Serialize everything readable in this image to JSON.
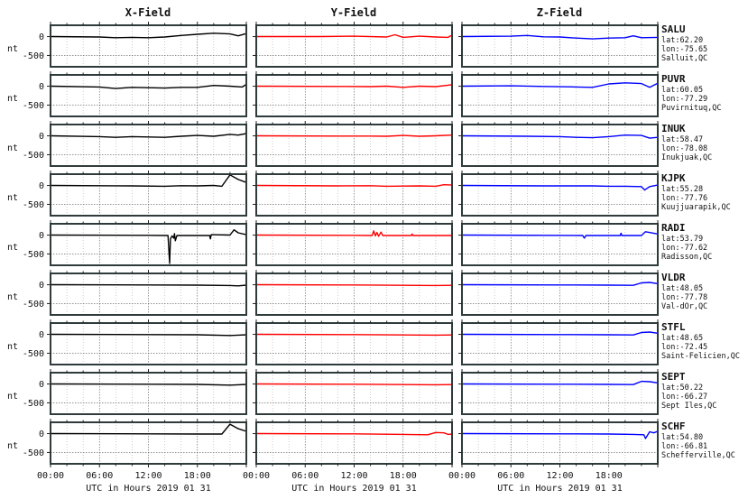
{
  "columns": [
    "X-Field",
    "Y-Field",
    "Z-Field"
  ],
  "colors": {
    "x": "#000000",
    "y": "#ff0000",
    "z": "#0000ff"
  },
  "unit": "nt",
  "y_ticks": [
    "0",
    "-500"
  ],
  "x_ticks": [
    "00:00",
    "06:00",
    "12:00",
    "18:00"
  ],
  "x_axis_label": "UTC in Hours  2019 01 31",
  "stations": [
    {
      "code": "SALU",
      "lat": "lat:62.20",
      "lon": "lon:-75.65",
      "place": "Salluit,QC"
    },
    {
      "code": "PUVR",
      "lat": "lat:60.05",
      "lon": "lon:-77.29",
      "place": "Puvirnituq,QC"
    },
    {
      "code": "INUK",
      "lat": "lat:58.47",
      "lon": "lon:-78.08",
      "place": "Inukjuak,QC"
    },
    {
      "code": "KJPK",
      "lat": "lat:55.28",
      "lon": "lon:-77.76",
      "place": "Kuujjuarapik,QC"
    },
    {
      "code": "RADI",
      "lat": "lat:53.79",
      "lon": "lon:-77.62",
      "place": "Radisson,QC"
    },
    {
      "code": "VLDR",
      "lat": "lat:48.05",
      "lon": "lon:-77.78",
      "place": "Val-dOr,QC"
    },
    {
      "code": "STFL",
      "lat": "lat:48.65",
      "lon": "lon:-72.45",
      "place": "Saint-Felicien,QC"
    },
    {
      "code": "SEPT",
      "lat": "lat:50.22",
      "lon": "lon:-66.27",
      "place": "Sept Iles,QC"
    },
    {
      "code": "SCHF",
      "lat": "lat:54.80",
      "lon": "lon:-66.81",
      "place": "Schefferville,QC"
    }
  ],
  "chart_data": {
    "type": "line",
    "title": "",
    "xlabel": "UTC in Hours  2019 01 31",
    "ylabel": "nt",
    "xlim": [
      0,
      24
    ],
    "ylim": [
      -800,
      300
    ],
    "x_tick_values": [
      0,
      6,
      12,
      18
    ],
    "y_tick_values": [
      0,
      -500
    ],
    "grid": true,
    "panels": [
      {
        "station": "SALU",
        "x": [
          [
            0,
            0
          ],
          [
            6,
            -10
          ],
          [
            8,
            -30
          ],
          [
            10,
            -20
          ],
          [
            12,
            -30
          ],
          [
            14,
            -10
          ],
          [
            16,
            30
          ],
          [
            18,
            60
          ],
          [
            20,
            90
          ],
          [
            22,
            70
          ],
          [
            23,
            20
          ],
          [
            24,
            80
          ]
        ],
        "y": [
          [
            0,
            0
          ],
          [
            8,
            0
          ],
          [
            12,
            10
          ],
          [
            16,
            -10
          ],
          [
            17,
            50
          ],
          [
            18,
            -20
          ],
          [
            20,
            10
          ],
          [
            22,
            -10
          ],
          [
            23.5,
            -20
          ],
          [
            24,
            40
          ]
        ],
        "z": [
          [
            0,
            0
          ],
          [
            6,
            10
          ],
          [
            8,
            30
          ],
          [
            10,
            -5
          ],
          [
            12,
            -10
          ],
          [
            14,
            -40
          ],
          [
            16,
            -60
          ],
          [
            18,
            -40
          ],
          [
            20,
            -30
          ],
          [
            21,
            20
          ],
          [
            22,
            -30
          ],
          [
            24,
            -20
          ]
        ]
      },
      {
        "station": "PUVR",
        "x": [
          [
            0,
            0
          ],
          [
            6,
            -20
          ],
          [
            8,
            -60
          ],
          [
            10,
            -30
          ],
          [
            12,
            -40
          ],
          [
            14,
            -50
          ],
          [
            16,
            -30
          ],
          [
            18,
            -30
          ],
          [
            20,
            20
          ],
          [
            22,
            0
          ],
          [
            23.5,
            -20
          ],
          [
            24,
            50
          ]
        ],
        "y": [
          [
            0,
            0
          ],
          [
            10,
            -5
          ],
          [
            14,
            -10
          ],
          [
            16,
            0
          ],
          [
            18,
            -30
          ],
          [
            20,
            0
          ],
          [
            22,
            -10
          ],
          [
            24,
            40
          ]
        ],
        "z": [
          [
            0,
            0
          ],
          [
            6,
            10
          ],
          [
            10,
            -5
          ],
          [
            14,
            -20
          ],
          [
            16,
            -30
          ],
          [
            18,
            60
          ],
          [
            20,
            90
          ],
          [
            22,
            70
          ],
          [
            23,
            -30
          ],
          [
            24,
            80
          ]
        ]
      },
      {
        "station": "INUK",
        "x": [
          [
            0,
            0
          ],
          [
            6,
            -20
          ],
          [
            8,
            -40
          ],
          [
            10,
            -20
          ],
          [
            12,
            -30
          ],
          [
            14,
            -40
          ],
          [
            16,
            -10
          ],
          [
            18,
            10
          ],
          [
            20,
            -10
          ],
          [
            22,
            40
          ],
          [
            23,
            20
          ],
          [
            24,
            60
          ]
        ],
        "y": [
          [
            0,
            0
          ],
          [
            10,
            -5
          ],
          [
            14,
            -5
          ],
          [
            16,
            -10
          ],
          [
            18,
            10
          ],
          [
            20,
            -10
          ],
          [
            22,
            0
          ],
          [
            24,
            20
          ]
        ],
        "z": [
          [
            0,
            0
          ],
          [
            8,
            -10
          ],
          [
            12,
            -20
          ],
          [
            14,
            -40
          ],
          [
            16,
            -50
          ],
          [
            18,
            -20
          ],
          [
            20,
            20
          ],
          [
            22,
            10
          ],
          [
            23,
            -60
          ],
          [
            24,
            -40
          ]
        ]
      },
      {
        "station": "KJPK",
        "x": [
          [
            0,
            0
          ],
          [
            10,
            -10
          ],
          [
            14,
            -20
          ],
          [
            16,
            -5
          ],
          [
            18,
            -10
          ],
          [
            20,
            0
          ],
          [
            21,
            -20
          ],
          [
            22,
            280
          ],
          [
            23,
            160
          ],
          [
            24,
            80
          ]
        ],
        "y": [
          [
            0,
            0
          ],
          [
            10,
            -10
          ],
          [
            14,
            -5
          ],
          [
            16,
            -20
          ],
          [
            18,
            -15
          ],
          [
            20,
            -10
          ],
          [
            22,
            -20
          ],
          [
            23,
            20
          ],
          [
            24,
            10
          ]
        ],
        "z": [
          [
            0,
            0
          ],
          [
            10,
            -10
          ],
          [
            14,
            -10
          ],
          [
            16,
            -10
          ],
          [
            18,
            -20
          ],
          [
            20,
            -20
          ],
          [
            22,
            -30
          ],
          [
            22.4,
            -120
          ],
          [
            23,
            -30
          ],
          [
            24,
            10
          ]
        ]
      },
      {
        "station": "RADI",
        "x": [
          [
            0,
            0
          ],
          [
            12,
            -5
          ],
          [
            14.4,
            -10
          ],
          [
            14.5,
            -380
          ],
          [
            14.6,
            -750
          ],
          [
            14.7,
            -100
          ],
          [
            14.9,
            -20
          ],
          [
            15.1,
            -80
          ],
          [
            15.2,
            40
          ],
          [
            15.3,
            -150
          ],
          [
            15.5,
            -10
          ],
          [
            19.5,
            -10
          ],
          [
            19.6,
            -100
          ],
          [
            19.7,
            10
          ],
          [
            22,
            0
          ],
          [
            22.5,
            140
          ],
          [
            23,
            60
          ],
          [
            24,
            10
          ]
        ],
        "y": [
          [
            0,
            0
          ],
          [
            12,
            -5
          ],
          [
            14.2,
            -10
          ],
          [
            14.4,
            110
          ],
          [
            14.6,
            -20
          ],
          [
            14.8,
            70
          ],
          [
            15,
            -30
          ],
          [
            15.3,
            80
          ],
          [
            15.5,
            -10
          ],
          [
            19,
            -10
          ],
          [
            19.1,
            30
          ],
          [
            19.2,
            -10
          ],
          [
            24,
            -10
          ]
        ],
        "z": [
          [
            0,
            0
          ],
          [
            14.8,
            -10
          ],
          [
            15,
            -80
          ],
          [
            15.2,
            -10
          ],
          [
            19.4,
            -10
          ],
          [
            19.5,
            50
          ],
          [
            19.6,
            -10
          ],
          [
            22,
            -10
          ],
          [
            22.5,
            90
          ],
          [
            24,
            30
          ]
        ]
      },
      {
        "station": "VLDR",
        "x": [
          [
            0,
            0
          ],
          [
            12,
            -5
          ],
          [
            18,
            -10
          ],
          [
            22,
            -20
          ],
          [
            23,
            -30
          ],
          [
            24,
            -10
          ]
        ],
        "y": [
          [
            0,
            0
          ],
          [
            12,
            -5
          ],
          [
            18,
            -15
          ],
          [
            22,
            -20
          ],
          [
            24,
            -15
          ]
        ],
        "z": [
          [
            0,
            0
          ],
          [
            12,
            -5
          ],
          [
            18,
            -10
          ],
          [
            21,
            -15
          ],
          [
            22,
            50
          ],
          [
            23,
            60
          ],
          [
            24,
            30
          ]
        ]
      },
      {
        "station": "STFL",
        "x": [
          [
            0,
            0
          ],
          [
            12,
            -5
          ],
          [
            18,
            -10
          ],
          [
            22,
            -30
          ],
          [
            23,
            -20
          ],
          [
            24,
            -10
          ]
        ],
        "y": [
          [
            0,
            0
          ],
          [
            12,
            -5
          ],
          [
            18,
            -15
          ],
          [
            22,
            -20
          ],
          [
            24,
            -15
          ]
        ],
        "z": [
          [
            0,
            0
          ],
          [
            12,
            -5
          ],
          [
            18,
            -10
          ],
          [
            21,
            -15
          ],
          [
            22,
            50
          ],
          [
            23,
            60
          ],
          [
            24,
            30
          ]
        ]
      },
      {
        "station": "SEPT",
        "x": [
          [
            0,
            0
          ],
          [
            12,
            -5
          ],
          [
            18,
            -10
          ],
          [
            22,
            -30
          ],
          [
            23,
            -20
          ],
          [
            24,
            -10
          ]
        ],
        "y": [
          [
            0,
            0
          ],
          [
            12,
            -5
          ],
          [
            18,
            -15
          ],
          [
            22,
            -20
          ],
          [
            24,
            -15
          ]
        ],
        "z": [
          [
            0,
            0
          ],
          [
            12,
            -5
          ],
          [
            18,
            -10
          ],
          [
            21,
            -15
          ],
          [
            22,
            70
          ],
          [
            23,
            60
          ],
          [
            24,
            30
          ]
        ]
      },
      {
        "station": "SCHF",
        "x": [
          [
            0,
            0
          ],
          [
            12,
            -5
          ],
          [
            18,
            -10
          ],
          [
            21,
            -10
          ],
          [
            22,
            250
          ],
          [
            23,
            130
          ],
          [
            24,
            60
          ]
        ],
        "y": [
          [
            0,
            0
          ],
          [
            12,
            -5
          ],
          [
            18,
            -20
          ],
          [
            21,
            -30
          ],
          [
            22,
            30
          ],
          [
            23,
            20
          ],
          [
            23.5,
            -20
          ],
          [
            24,
            -10
          ]
        ],
        "z": [
          [
            0,
            0
          ],
          [
            12,
            -5
          ],
          [
            18,
            -10
          ],
          [
            21,
            -20
          ],
          [
            22.3,
            -30
          ],
          [
            22.5,
            -130
          ],
          [
            23,
            50
          ],
          [
            23.5,
            20
          ],
          [
            24,
            60
          ]
        ]
      }
    ]
  }
}
